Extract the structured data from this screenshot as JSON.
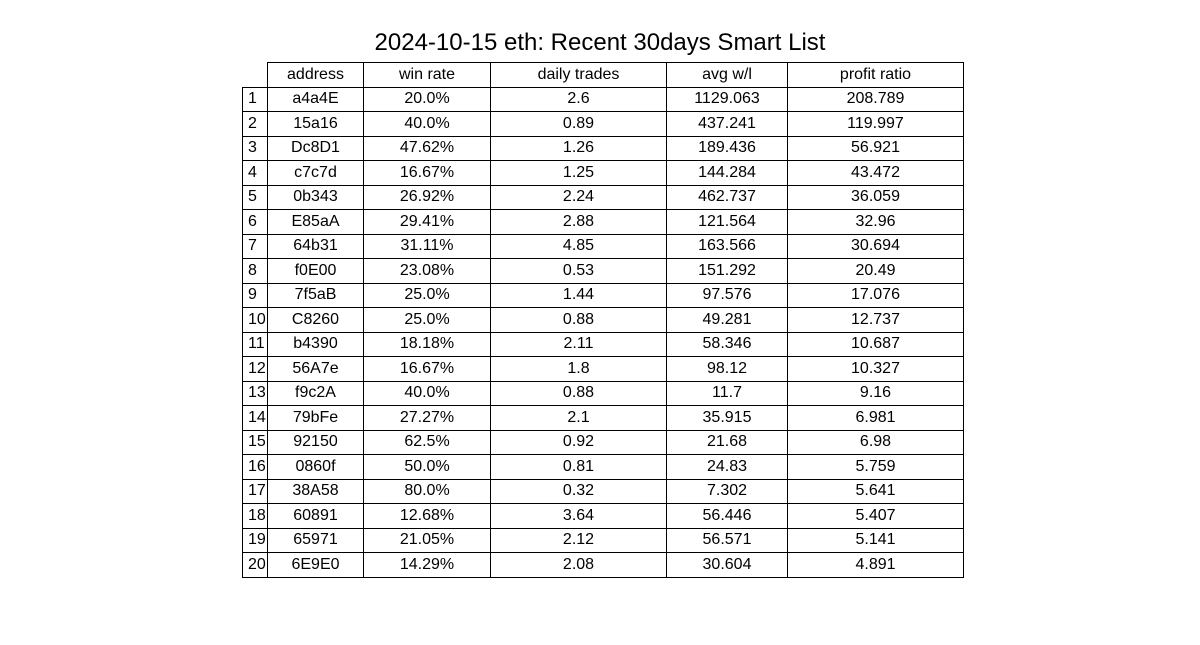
{
  "chart_data": {
    "type": "table",
    "title": "2024-10-15 eth: Recent 30days Smart List",
    "columns": [
      "address",
      "win rate",
      "daily trades",
      "avg w/l",
      "profit ratio"
    ],
    "rows": [
      {
        "index": "1",
        "cells": [
          "a4a4E",
          "20.0%",
          "2.6",
          "1129.063",
          "208.789"
        ]
      },
      {
        "index": "2",
        "cells": [
          "15a16",
          "40.0%",
          "0.89",
          "437.241",
          "119.997"
        ]
      },
      {
        "index": "3",
        "cells": [
          "Dc8D1",
          "47.62%",
          "1.26",
          "189.436",
          "56.921"
        ]
      },
      {
        "index": "4",
        "cells": [
          "c7c7d",
          "16.67%",
          "1.25",
          "144.284",
          "43.472"
        ]
      },
      {
        "index": "5",
        "cells": [
          "0b343",
          "26.92%",
          "2.24",
          "462.737",
          "36.059"
        ]
      },
      {
        "index": "6",
        "cells": [
          "E85aA",
          "29.41%",
          "2.88",
          "121.564",
          "32.96"
        ]
      },
      {
        "index": "7",
        "cells": [
          "64b31",
          "31.11%",
          "4.85",
          "163.566",
          "30.694"
        ]
      },
      {
        "index": "8",
        "cells": [
          "f0E00",
          "23.08%",
          "0.53",
          "151.292",
          "20.49"
        ]
      },
      {
        "index": "9",
        "cells": [
          "7f5aB",
          "25.0%",
          "1.44",
          "97.576",
          "17.076"
        ]
      },
      {
        "index": "10",
        "cells": [
          "C8260",
          "25.0%",
          "0.88",
          "49.281",
          "12.737"
        ]
      },
      {
        "index": "11",
        "cells": [
          "b4390",
          "18.18%",
          "2.11",
          "58.346",
          "10.687"
        ]
      },
      {
        "index": "12",
        "cells": [
          "56A7e",
          "16.67%",
          "1.8",
          "98.12",
          "10.327"
        ]
      },
      {
        "index": "13",
        "cells": [
          "f9c2A",
          "40.0%",
          "0.88",
          "11.7",
          "9.16"
        ]
      },
      {
        "index": "14",
        "cells": [
          "79bFe",
          "27.27%",
          "2.1",
          "35.915",
          "6.981"
        ]
      },
      {
        "index": "15",
        "cells": [
          "92150",
          "62.5%",
          "0.92",
          "21.68",
          "6.98"
        ]
      },
      {
        "index": "16",
        "cells": [
          "0860f",
          "50.0%",
          "0.81",
          "24.83",
          "5.759"
        ]
      },
      {
        "index": "17",
        "cells": [
          "38A58",
          "80.0%",
          "0.32",
          "7.302",
          "5.641"
        ]
      },
      {
        "index": "18",
        "cells": [
          "60891",
          "12.68%",
          "3.64",
          "56.446",
          "5.407"
        ]
      },
      {
        "index": "19",
        "cells": [
          "65971",
          "21.05%",
          "2.12",
          "56.571",
          "5.141"
        ]
      },
      {
        "index": "20",
        "cells": [
          "6E9E0",
          "14.29%",
          "2.08",
          "30.604",
          "4.891"
        ]
      }
    ]
  }
}
